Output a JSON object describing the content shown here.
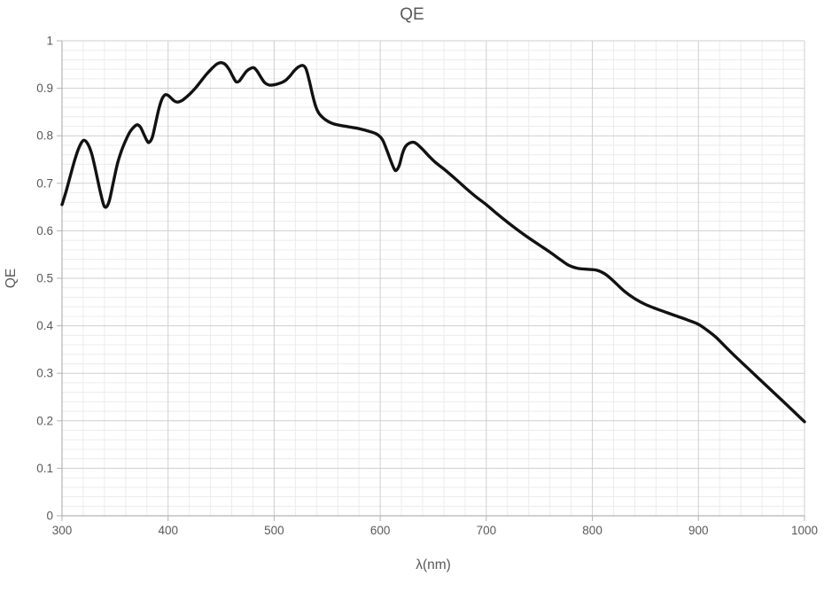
{
  "chart": {
    "title": "QE",
    "background_color": "#ffffff",
    "text_color": "#595959",
    "x_axis": {
      "label": "λ(nm)",
      "min": 300,
      "max": 1000,
      "major_step": 100,
      "minor_step": 20,
      "tick_labels": [
        "300",
        "400",
        "500",
        "600",
        "700",
        "800",
        "900",
        "1000"
      ]
    },
    "y_axis": {
      "label": "QE",
      "min": 0,
      "max": 1,
      "major_step": 0.1,
      "minor_step": 0.02,
      "tick_labels": [
        "0",
        "0.1",
        "0.2",
        "0.3",
        "0.4",
        "0.5",
        "0.6",
        "0.7",
        "0.8",
        "0.9",
        "1"
      ]
    },
    "grid": {
      "major_color": "#cfcfcf",
      "minor_color": "#ececec",
      "axis_color": "#b3b3b3"
    },
    "line": {
      "color": "#121212",
      "width": 3.4
    }
  },
  "chart_data": {
    "type": "line",
    "title": "QE",
    "xlabel": "λ(nm)",
    "ylabel": "QE",
    "xlim": [
      300,
      1000
    ],
    "ylim": [
      0,
      1
    ],
    "grid": "major and minor gridlines on both axes",
    "legend": "none",
    "series": [
      {
        "name": "QE",
        "points": [
          [
            300,
            0.655
          ],
          [
            304,
            0.684
          ],
          [
            308,
            0.717
          ],
          [
            312,
            0.749
          ],
          [
            316,
            0.775
          ],
          [
            320,
            0.79
          ],
          [
            324,
            0.784
          ],
          [
            328,
            0.762
          ],
          [
            332,
            0.724
          ],
          [
            336,
            0.683
          ],
          [
            340,
            0.651
          ],
          [
            344,
            0.659
          ],
          [
            348,
            0.698
          ],
          [
            352,
            0.739
          ],
          [
            356,
            0.768
          ],
          [
            360,
            0.79
          ],
          [
            364,
            0.808
          ],
          [
            368,
            0.819
          ],
          [
            371,
            0.823
          ],
          [
            374,
            0.818
          ],
          [
            377,
            0.804
          ],
          [
            380,
            0.79
          ],
          [
            382,
            0.786
          ],
          [
            385,
            0.796
          ],
          [
            388,
            0.824
          ],
          [
            391,
            0.854
          ],
          [
            394,
            0.876
          ],
          [
            397,
            0.886
          ],
          [
            400,
            0.885
          ],
          [
            403,
            0.879
          ],
          [
            406,
            0.873
          ],
          [
            409,
            0.871
          ],
          [
            413,
            0.874
          ],
          [
            417,
            0.881
          ],
          [
            421,
            0.889
          ],
          [
            426,
            0.901
          ],
          [
            431,
            0.915
          ],
          [
            436,
            0.929
          ],
          [
            441,
            0.941
          ],
          [
            446,
            0.951
          ],
          [
            450,
            0.954
          ],
          [
            454,
            0.95
          ],
          [
            458,
            0.938
          ],
          [
            461,
            0.925
          ],
          [
            464,
            0.914
          ],
          [
            467,
            0.915
          ],
          [
            470,
            0.924
          ],
          [
            474,
            0.936
          ],
          [
            478,
            0.942
          ],
          [
            481,
            0.943
          ],
          [
            484,
            0.936
          ],
          [
            487,
            0.925
          ],
          [
            491,
            0.912
          ],
          [
            495,
            0.907
          ],
          [
            499,
            0.907
          ],
          [
            503,
            0.909
          ],
          [
            507,
            0.912
          ],
          [
            511,
            0.917
          ],
          [
            515,
            0.926
          ],
          [
            519,
            0.937
          ],
          [
            523,
            0.945
          ],
          [
            527,
            0.948
          ],
          [
            530,
            0.941
          ],
          [
            533,
            0.917
          ],
          [
            536,
            0.888
          ],
          [
            539,
            0.863
          ],
          [
            542,
            0.848
          ],
          [
            546,
            0.838
          ],
          [
            551,
            0.83
          ],
          [
            556,
            0.825
          ],
          [
            562,
            0.822
          ],
          [
            570,
            0.819
          ],
          [
            580,
            0.815
          ],
          [
            590,
            0.809
          ],
          [
            597,
            0.803
          ],
          [
            602,
            0.792
          ],
          [
            606,
            0.771
          ],
          [
            610,
            0.747
          ],
          [
            613,
            0.731
          ],
          [
            615,
            0.727
          ],
          [
            618,
            0.738
          ],
          [
            621,
            0.763
          ],
          [
            624,
            0.778
          ],
          [
            628,
            0.785
          ],
          [
            632,
            0.786
          ],
          [
            636,
            0.78
          ],
          [
            641,
            0.769
          ],
          [
            646,
            0.757
          ],
          [
            652,
            0.744
          ],
          [
            660,
            0.73
          ],
          [
            670,
            0.711
          ],
          [
            680,
            0.691
          ],
          [
            690,
            0.672
          ],
          [
            700,
            0.655
          ],
          [
            710,
            0.636
          ],
          [
            720,
            0.618
          ],
          [
            730,
            0.601
          ],
          [
            740,
            0.585
          ],
          [
            750,
            0.57
          ],
          [
            760,
            0.555
          ],
          [
            770,
            0.539
          ],
          [
            778,
            0.527
          ],
          [
            786,
            0.521
          ],
          [
            795,
            0.519
          ],
          [
            804,
            0.517
          ],
          [
            812,
            0.509
          ],
          [
            820,
            0.494
          ],
          [
            830,
            0.473
          ],
          [
            840,
            0.457
          ],
          [
            850,
            0.445
          ],
          [
            860,
            0.436
          ],
          [
            870,
            0.428
          ],
          [
            880,
            0.42
          ],
          [
            890,
            0.412
          ],
          [
            900,
            0.403
          ],
          [
            908,
            0.391
          ],
          [
            916,
            0.377
          ],
          [
            925,
            0.357
          ],
          [
            935,
            0.335
          ],
          [
            945,
            0.314
          ],
          [
            955,
            0.293
          ],
          [
            965,
            0.272
          ],
          [
            975,
            0.251
          ],
          [
            985,
            0.23
          ],
          [
            1000,
            0.198
          ]
        ]
      }
    ]
  }
}
